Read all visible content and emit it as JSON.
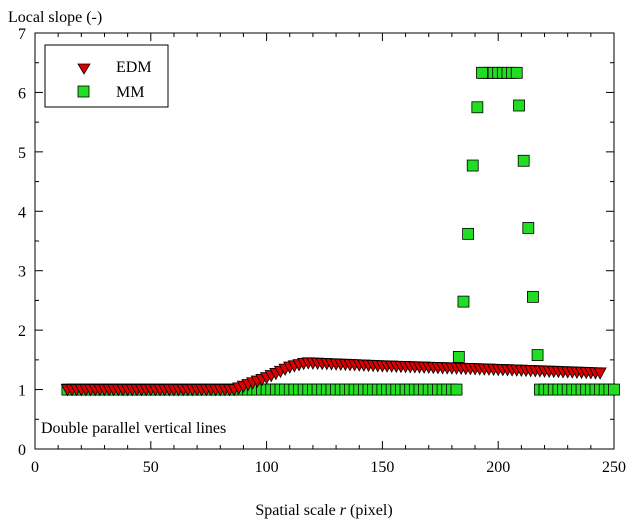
{
  "chart_data": {
    "type": "scatter",
    "ylabel": "Local slope (-)",
    "xlabel_prefix": "Spatial scale ",
    "xlabel_var": "r",
    "xlabel_suffix": " (pixel)",
    "annotation": "Double parallel vertical lines",
    "xlim": [
      0,
      250
    ],
    "ylim": [
      0,
      7
    ],
    "x_ticks": [
      0,
      50,
      100,
      150,
      200,
      250
    ],
    "y_ticks": [
      0,
      1,
      2,
      3,
      4,
      5,
      6,
      7
    ],
    "legend_position": "top-left",
    "series": [
      {
        "name": "EDM",
        "marker": "triangle-down",
        "color": "#dd0000",
        "segments": [
          {
            "x_start": 14,
            "x_end": 86,
            "step": 2,
            "y": [
              [
                14,
                1.0
              ],
              [
                86,
                1.0
              ]
            ]
          },
          {
            "x_start": 88,
            "x_end": 118,
            "step": 2,
            "y": [
              [
                86,
                1.0
              ],
              [
                100,
                1.2
              ],
              [
                110,
                1.38
              ],
              [
                117,
                1.45
              ],
              [
                118,
                1.45
              ]
            ]
          },
          {
            "x_start": 120,
            "x_end": 244,
            "step": 2,
            "y": [
              [
                118,
                1.45
              ],
              [
                150,
                1.4
              ],
              [
                200,
                1.34
              ],
              [
                244,
                1.28
              ]
            ]
          }
        ]
      },
      {
        "name": "MM",
        "marker": "square",
        "color": "#22dd22",
        "segments": [
          {
            "x_start": 14,
            "x_end": 182,
            "step": 2,
            "y": [
              [
                14,
                1.0
              ],
              [
                182,
                1.0
              ]
            ]
          },
          {
            "x_start": 218,
            "x_end": 250,
            "step": 2,
            "y": [
              [
                218,
                1.0
              ],
              [
                250,
                1.0
              ]
            ]
          },
          {
            "x_start": 194,
            "x_end": 208,
            "step": 2,
            "y": [
              [
                194,
                6.33
              ],
              [
                208,
                6.33
              ]
            ]
          }
        ],
        "points": [
          [
            183,
            1.55
          ],
          [
            185,
            2.48
          ],
          [
            187,
            3.62
          ],
          [
            189,
            4.77
          ],
          [
            191,
            5.75
          ],
          [
            193,
            6.33
          ],
          [
            209,
            5.78
          ],
          [
            211,
            4.85
          ],
          [
            213,
            3.72
          ],
          [
            215,
            2.56
          ],
          [
            217,
            1.58
          ]
        ]
      }
    ]
  }
}
